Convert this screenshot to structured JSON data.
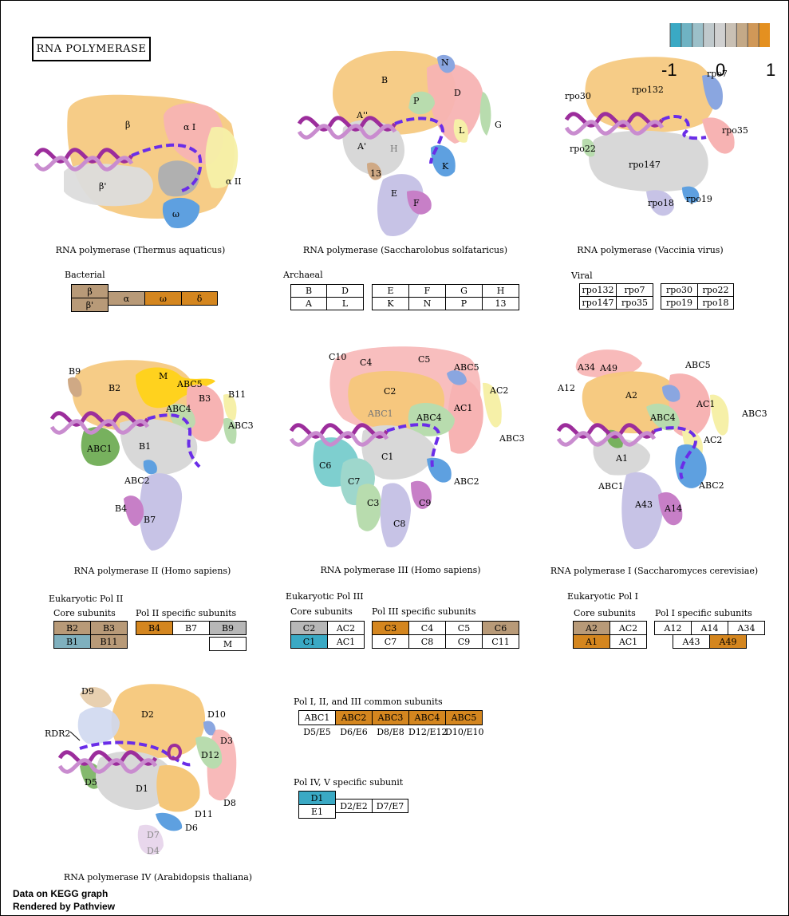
{
  "title": "RNA POLYMERASE",
  "colors": {
    "orange": "#d4861f",
    "tan": "#b89a78",
    "gray": "#b7b7b7",
    "blue": "#3aa9c4",
    "steel": "#7fb0be"
  },
  "legend": {
    "min": "-1",
    "mid": "0",
    "max": "1",
    "colors": [
      "#3aa9c4",
      "#6fb3c3",
      "#9cc0c9",
      "#c0c9cc",
      "#d0d0d0",
      "#c9c0b4",
      "#c4a987",
      "#d09858",
      "#e49020"
    ]
  },
  "captions": {
    "thermus": "RNA polymerase (Thermus aquaticus)",
    "sulfolobus": "RNA polymerase (Saccharolobus solfataricus)",
    "vaccinia": "RNA polymerase (Vaccinia virus)",
    "pol2": "RNA polymerase II (Homo sapiens)",
    "pol3": "RNA polymerase III (Homo sapiens)",
    "pol1": "RNA polymerase I (Saccharomyces cerevisiae)",
    "pol4": "RNA polymerase IV (Arabidopsis thaliana)"
  },
  "sections": {
    "bacterial": "Bacterial",
    "archaeal": "Archaeal",
    "viral": "Viral",
    "euk2": "Eukaryotic Pol II",
    "euk3": "Eukaryotic Pol III",
    "euk1": "Eukaryotic Pol I",
    "core": "Core subunits",
    "pol2_specific": "Pol II specific subunits",
    "pol3_specific": "Pol III specific subunits",
    "pol1_specific": "Pol I specific subunits",
    "common": "Pol I, II, and III common subunits",
    "pol45": "Pol IV, V specific subunit"
  },
  "boxes": {
    "bacterial": [
      {
        "t": "β",
        "c": "tan"
      },
      {
        "t": "β'",
        "c": "tan"
      },
      {
        "t": "α",
        "c": "tan"
      },
      {
        "t": "ω",
        "c": "orange"
      },
      {
        "t": "δ",
        "c": "orange"
      }
    ],
    "archaeal_a": [
      "B",
      "D",
      "A",
      "L"
    ],
    "archaeal_b": [
      "E",
      "F",
      "G",
      "H",
      "K",
      "N",
      "P",
      "13"
    ],
    "viral_a": [
      "rpo132",
      "rpo7",
      "rpo147",
      "rpo35"
    ],
    "viral_b": [
      "rpo30",
      "rpo22",
      "rpo19",
      "rpo18"
    ],
    "pol2_core": [
      {
        "t": "B2",
        "c": "tan"
      },
      {
        "t": "B3",
        "c": "tan"
      },
      {
        "t": "B1",
        "c": "steel"
      },
      {
        "t": "B11",
        "c": "tan"
      }
    ],
    "pol2_spec": [
      {
        "t": "B4",
        "c": "orange"
      },
      {
        "t": "B7",
        "c": "white"
      },
      {
        "t": "B9",
        "c": "gray"
      },
      {
        "t": "M",
        "c": "white"
      }
    ],
    "pol3_core": [
      {
        "t": "C2",
        "c": "gray"
      },
      {
        "t": "AC2",
        "c": "white"
      },
      {
        "t": "C1",
        "c": "blue"
      },
      {
        "t": "AC1",
        "c": "white"
      }
    ],
    "pol3_spec": [
      {
        "t": "C3",
        "c": "orange"
      },
      {
        "t": "C4",
        "c": "white"
      },
      {
        "t": "C5",
        "c": "white"
      },
      {
        "t": "C6",
        "c": "tan"
      },
      {
        "t": "C7",
        "c": "white"
      },
      {
        "t": "C8",
        "c": "white"
      },
      {
        "t": "C9",
        "c": "white"
      },
      {
        "t": "C11",
        "c": "white"
      }
    ],
    "pol1_core": [
      {
        "t": "A2",
        "c": "tan"
      },
      {
        "t": "AC2",
        "c": "white"
      },
      {
        "t": "A1",
        "c": "orange"
      },
      {
        "t": "AC1",
        "c": "white"
      }
    ],
    "pol1_spec": [
      {
        "t": "A12",
        "c": "white"
      },
      {
        "t": "A14",
        "c": "white"
      },
      {
        "t": "A34",
        "c": "white"
      },
      {
        "t": "A43",
        "c": "white"
      },
      {
        "t": "A49",
        "c": "orange"
      }
    ],
    "common": [
      {
        "t": "ABC1",
        "c": "white"
      },
      {
        "t": "ABC2",
        "c": "orange"
      },
      {
        "t": "ABC3",
        "c": "orange"
      },
      {
        "t": "ABC4",
        "c": "orange"
      },
      {
        "t": "ABC5",
        "c": "orange"
      }
    ],
    "common_sub": [
      "D5/E5",
      "D6/E6",
      "D8/E8",
      "D12/E12",
      "D10/E10"
    ],
    "pol45": [
      {
        "t": "D1",
        "c": "blue"
      },
      {
        "t": "E1",
        "c": "white"
      },
      {
        "t": "D2/E2",
        "c": "white"
      },
      {
        "t": "D7/E7",
        "c": "white"
      }
    ]
  },
  "molecule_labels": {
    "thermus": [
      "β",
      "α I",
      "α II",
      "β'",
      "ω"
    ],
    "sulfolobus": [
      "B",
      "N",
      "D",
      "P",
      "A''",
      "L",
      "G",
      "A'",
      "H",
      "K",
      "13",
      "E",
      "F"
    ],
    "vaccinia": [
      "rpo132",
      "rpo7",
      "rpo30",
      "rpo35",
      "rpo22",
      "rpo147",
      "rpo19",
      "rpo18"
    ],
    "pol2": [
      "B9",
      "M",
      "B2",
      "ABC5",
      "B3",
      "B11",
      "ABC4",
      "ABC3",
      "ABC1",
      "B1",
      "ABC2",
      "B4",
      "B7"
    ],
    "pol3": [
      "C10",
      "C4",
      "C5",
      "ABC5",
      "AC2",
      "C2",
      "ABC1",
      "ABC4",
      "AC1",
      "ABC3",
      "C6",
      "C1",
      "C7",
      "C3",
      "ABC2",
      "C9",
      "C8"
    ],
    "pol1": [
      "A34",
      "A49",
      "ABC5",
      "A12",
      "A2",
      "AC1",
      "ABC4",
      "ABC3",
      "AC2",
      "A1",
      "ABC1",
      "ABC2",
      "A43",
      "A14"
    ],
    "pol4": [
      "D9",
      "D2",
      "D10",
      "RDR2",
      "D3",
      "D12",
      "D5",
      "D1",
      "D8",
      "D11",
      "D6",
      "D7",
      "D4"
    ]
  },
  "footer": {
    "line1": "Data on KEGG graph",
    "line2": "Rendered by Pathview"
  }
}
